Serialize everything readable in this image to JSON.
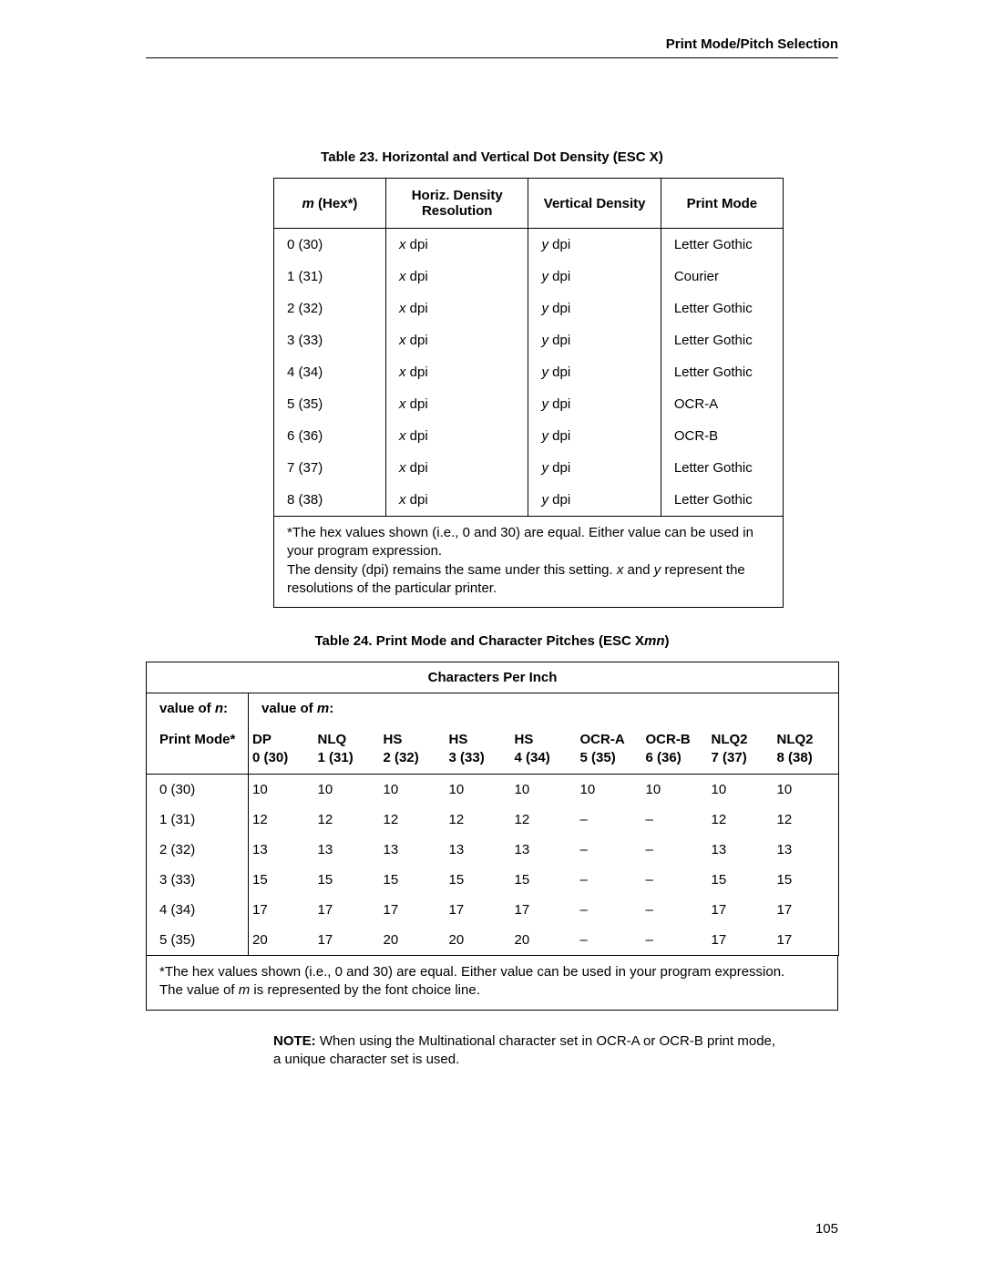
{
  "header": "Print Mode/Pitch Selection",
  "table23": {
    "title": "Table 23. Horizontal and Vertical Dot Density (ESC X)",
    "columns": {
      "c1_prefix": "m",
      "c1_suffix": " (Hex*)",
      "c2": "Horiz. Density Resolution",
      "c3": "Vertical Density",
      "c4": "Print Mode"
    },
    "rows": [
      {
        "m": "0 (30)",
        "hprefix": "x",
        "hsuffix": " dpi",
        "vprefix": "y",
        "vsuffix": " dpi",
        "mode": "Letter Gothic"
      },
      {
        "m": "1 (31)",
        "hprefix": "x",
        "hsuffix": " dpi",
        "vprefix": "y",
        "vsuffix": " dpi",
        "mode": "Courier"
      },
      {
        "m": "2 (32)",
        "hprefix": "x",
        "hsuffix": " dpi",
        "vprefix": "y",
        "vsuffix": " dpi",
        "mode": "Letter Gothic"
      },
      {
        "m": "3 (33)",
        "hprefix": "x",
        "hsuffix": " dpi",
        "vprefix": "y",
        "vsuffix": " dpi",
        "mode": "Letter Gothic"
      },
      {
        "m": "4 (34)",
        "hprefix": "x",
        "hsuffix": " dpi",
        "vprefix": "y",
        "vsuffix": " dpi",
        "mode": "Letter Gothic"
      },
      {
        "m": "5 (35)",
        "hprefix": "x",
        "hsuffix": " dpi",
        "vprefix": "y",
        "vsuffix": " dpi",
        "mode": "OCR-A"
      },
      {
        "m": "6 (36)",
        "hprefix": "x",
        "hsuffix": " dpi",
        "vprefix": "y",
        "vsuffix": " dpi",
        "mode": "OCR-B"
      },
      {
        "m": "7 (37)",
        "hprefix": "x",
        "hsuffix": " dpi",
        "vprefix": "y",
        "vsuffix": " dpi",
        "mode": "Letter Gothic"
      },
      {
        "m": "8 (38)",
        "hprefix": "x",
        "hsuffix": " dpi",
        "vprefix": "y",
        "vsuffix": " dpi",
        "mode": "Letter Gothic"
      }
    ],
    "footnote": {
      "line1": "*The hex values shown (i.e., 0 and 30) are equal. Either value can be used in your program expression.",
      "line2a": "The density (dpi) remains the same under this setting. ",
      "line2_x": "x",
      "line2_mid": " and ",
      "line2_y": "y",
      "line2b": " represent the resolutions of the particular printer."
    }
  },
  "table24": {
    "title_prefix": "Table 24. Print Mode and Character Pitches (ESC X",
    "title_mn": "mn",
    "title_suffix": ")",
    "cpi_header": "Characters Per Inch",
    "label_n_prefix": "value of ",
    "label_n_var": "n",
    "label_n_suffix": ":",
    "label_m_prefix": "value of ",
    "label_m_var": "m",
    "label_m_suffix": ":",
    "row_header": "Print Mode*",
    "columns": [
      {
        "l1": "DP",
        "l2": "0 (30)"
      },
      {
        "l1": "NLQ",
        "l2": "1 (31)"
      },
      {
        "l1": "HS",
        "l2": "2 (32)"
      },
      {
        "l1": "HS",
        "l2": "3 (33)"
      },
      {
        "l1": "HS",
        "l2": "4 (34)"
      },
      {
        "l1": "OCR-A",
        "l2": "5 (35)"
      },
      {
        "l1": "OCR-B",
        "l2": "6 (36)"
      },
      {
        "l1": "NLQ2",
        "l2": "7 (37)"
      },
      {
        "l1": "NLQ2",
        "l2": "8 (38)"
      }
    ],
    "rows": [
      {
        "n": "0 (30)",
        "v": [
          "10",
          "10",
          "10",
          "10",
          "10",
          "10",
          "10",
          "10",
          "10"
        ]
      },
      {
        "n": "1 (31)",
        "v": [
          "12",
          "12",
          "12",
          "12",
          "12",
          "–",
          "–",
          "12",
          "12"
        ]
      },
      {
        "n": "2 (32)",
        "v": [
          "13",
          "13",
          "13",
          "13",
          "13",
          "–",
          "–",
          "13",
          "13"
        ]
      },
      {
        "n": "3 (33)",
        "v": [
          "15",
          "15",
          "15",
          "15",
          "15",
          "–",
          "–",
          "15",
          "15"
        ]
      },
      {
        "n": "4 (34)",
        "v": [
          "17",
          "17",
          "17",
          "17",
          "17",
          "–",
          "–",
          "17",
          "17"
        ]
      },
      {
        "n": "5 (35)",
        "v": [
          "20",
          "17",
          "20",
          "20",
          "20",
          "–",
          "–",
          "17",
          "17"
        ]
      }
    ],
    "footnote": {
      "line1": "*The hex values shown (i.e., 0 and 30) are equal. Either value can be used in your program expression.",
      "line2a": "The value of ",
      "line2_m": "m",
      "line2b": " is represented by the font choice line."
    }
  },
  "note": {
    "label": "NOTE:",
    "body": "  When using the Multinational character set in OCR-A or OCR-B print mode, a unique character set is used."
  },
  "page_number": "105"
}
